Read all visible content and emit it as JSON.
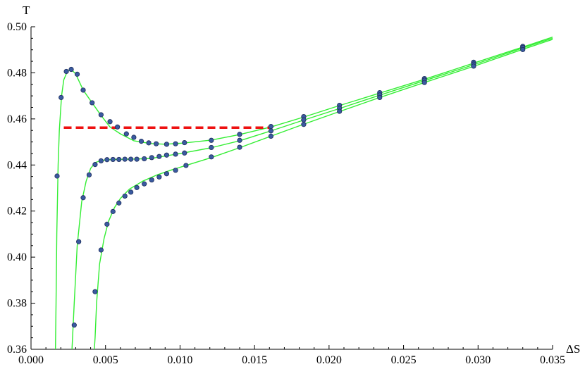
{
  "chart_data": {
    "type": "line",
    "xlabel": "ΔS",
    "ylabel": "T",
    "xlim": [
      0.0,
      0.035
    ],
    "ylim": [
      0.36,
      0.5
    ],
    "x_ticks": [
      "0.000",
      "0.005",
      "0.010",
      "0.015",
      "0.020",
      "0.025",
      "0.030",
      "0.035"
    ],
    "y_ticks": [
      "0.36",
      "0.38",
      "0.40",
      "0.42",
      "0.44",
      "0.46",
      "0.48",
      "0.50"
    ],
    "grid": false,
    "colors": {
      "curve": "#33ee33",
      "point": "#3a5aa0",
      "point_edge": "#1e2e5a",
      "plateau": "#ee1111"
    },
    "series": [
      {
        "curve": [
          [
            0.00163,
            0.355
          ],
          [
            0.00168,
            0.38
          ],
          [
            0.00173,
            0.41
          ],
          [
            0.00182,
            0.44
          ],
          [
            0.0019,
            0.455
          ],
          [
            0.00205,
            0.47
          ],
          [
            0.0022,
            0.477
          ],
          [
            0.00245,
            0.4808
          ],
          [
            0.0027,
            0.4815
          ],
          [
            0.003,
            0.4795
          ],
          [
            0.0035,
            0.4725
          ],
          [
            0.0041,
            0.467
          ],
          [
            0.0047,
            0.4615
          ],
          [
            0.0053,
            0.4565
          ],
          [
            0.006,
            0.4535
          ],
          [
            0.0069,
            0.4505
          ],
          [
            0.008,
            0.4493
          ],
          [
            0.009,
            0.449
          ],
          [
            0.0102,
            0.4495
          ],
          [
            0.0121,
            0.4508
          ],
          [
            0.014,
            0.4532
          ],
          [
            0.0161,
            0.4565
          ],
          [
            0.0183,
            0.4608
          ],
          [
            0.0207,
            0.4658
          ],
          [
            0.0234,
            0.4712
          ],
          [
            0.0264,
            0.4772
          ],
          [
            0.0297,
            0.4842
          ],
          [
            0.033,
            0.4912
          ],
          [
            0.035,
            0.4955
          ]
        ],
        "points": [
          [
            0.00175,
            0.4352
          ],
          [
            0.00202,
            0.4693
          ],
          [
            0.00237,
            0.4806
          ],
          [
            0.0027,
            0.4815
          ],
          [
            0.0031,
            0.4794
          ],
          [
            0.0035,
            0.4725
          ],
          [
            0.0041,
            0.467
          ],
          [
            0.0047,
            0.4618
          ],
          [
            0.0053,
            0.4588
          ],
          [
            0.0058,
            0.4565
          ],
          [
            0.0064,
            0.4535
          ],
          [
            0.0069,
            0.452
          ],
          [
            0.0074,
            0.4503
          ],
          [
            0.0079,
            0.4496
          ],
          [
            0.0084,
            0.4492
          ],
          [
            0.0091,
            0.449
          ],
          [
            0.0097,
            0.4492
          ],
          [
            0.0103,
            0.4497
          ],
          [
            0.0121,
            0.4507
          ],
          [
            0.014,
            0.4533
          ],
          [
            0.0161,
            0.4567
          ],
          [
            0.0183,
            0.461
          ],
          [
            0.0207,
            0.4659
          ],
          [
            0.0234,
            0.4714
          ],
          [
            0.0264,
            0.4775
          ],
          [
            0.0297,
            0.4846
          ],
          [
            0.033,
            0.4915
          ]
        ]
      },
      {
        "curve": [
          [
            0.0027,
            0.355
          ],
          [
            0.00275,
            0.36
          ],
          [
            0.0029,
            0.38
          ],
          [
            0.0031,
            0.405
          ],
          [
            0.0034,
            0.424
          ],
          [
            0.0037,
            0.433
          ],
          [
            0.004,
            0.4385
          ],
          [
            0.0043,
            0.441
          ],
          [
            0.0047,
            0.442
          ],
          [
            0.0055,
            0.4424
          ],
          [
            0.0065,
            0.4425
          ],
          [
            0.008,
            0.4428
          ],
          [
            0.0102,
            0.4452
          ],
          [
            0.0121,
            0.4475
          ],
          [
            0.014,
            0.4505
          ],
          [
            0.0161,
            0.4548
          ],
          [
            0.0183,
            0.4595
          ],
          [
            0.0207,
            0.4645
          ],
          [
            0.0234,
            0.4703
          ],
          [
            0.0264,
            0.4766
          ],
          [
            0.0297,
            0.4835
          ],
          [
            0.033,
            0.4908
          ],
          [
            0.035,
            0.495
          ]
        ],
        "points": [
          [
            0.0029,
            0.3705
          ],
          [
            0.0032,
            0.4067
          ],
          [
            0.0035,
            0.4258
          ],
          [
            0.0039,
            0.4357
          ],
          [
            0.0043,
            0.4402
          ],
          [
            0.0047,
            0.4418
          ],
          [
            0.0051,
            0.4423
          ],
          [
            0.0055,
            0.4424
          ],
          [
            0.0059,
            0.4424
          ],
          [
            0.0063,
            0.4425
          ],
          [
            0.0067,
            0.4425
          ],
          [
            0.0071,
            0.4425
          ],
          [
            0.0076,
            0.4427
          ],
          [
            0.0081,
            0.4432
          ],
          [
            0.0086,
            0.4437
          ],
          [
            0.0091,
            0.4443
          ],
          [
            0.0097,
            0.4447
          ],
          [
            0.0103,
            0.4452
          ],
          [
            0.0121,
            0.4476
          ],
          [
            0.014,
            0.4507
          ],
          [
            0.0161,
            0.4548
          ],
          [
            0.0183,
            0.4596
          ],
          [
            0.0207,
            0.4646
          ],
          [
            0.0234,
            0.4704
          ],
          [
            0.0264,
            0.4768
          ],
          [
            0.0297,
            0.4838
          ],
          [
            0.033,
            0.491
          ]
        ]
      },
      {
        "curve": [
          [
            0.0042,
            0.355
          ],
          [
            0.0043,
            0.365
          ],
          [
            0.0044,
            0.38
          ],
          [
            0.0046,
            0.397
          ],
          [
            0.0049,
            0.408
          ],
          [
            0.0052,
            0.4155
          ],
          [
            0.0056,
            0.4215
          ],
          [
            0.006,
            0.4255
          ],
          [
            0.0066,
            0.4295
          ],
          [
            0.0075,
            0.433
          ],
          [
            0.0085,
            0.4358
          ],
          [
            0.0095,
            0.438
          ],
          [
            0.0104,
            0.4398
          ],
          [
            0.0121,
            0.4432
          ],
          [
            0.014,
            0.4475
          ],
          [
            0.0161,
            0.4525
          ],
          [
            0.0183,
            0.4577
          ],
          [
            0.0207,
            0.4632
          ],
          [
            0.0234,
            0.4693
          ],
          [
            0.0264,
            0.4758
          ],
          [
            0.0297,
            0.4828
          ],
          [
            0.033,
            0.4902
          ],
          [
            0.035,
            0.4945
          ]
        ],
        "points": [
          [
            0.0043,
            0.385
          ],
          [
            0.0047,
            0.4031
          ],
          [
            0.0051,
            0.4143
          ],
          [
            0.0055,
            0.4198
          ],
          [
            0.0059,
            0.4235
          ],
          [
            0.0063,
            0.4265
          ],
          [
            0.0067,
            0.4282
          ],
          [
            0.0071,
            0.4302
          ],
          [
            0.0076,
            0.4318
          ],
          [
            0.0081,
            0.4335
          ],
          [
            0.0086,
            0.4348
          ],
          [
            0.0091,
            0.4362
          ],
          [
            0.0097,
            0.4377
          ],
          [
            0.0104,
            0.4398
          ],
          [
            0.0121,
            0.4435
          ],
          [
            0.014,
            0.4477
          ],
          [
            0.0161,
            0.4525
          ],
          [
            0.0183,
            0.4576
          ],
          [
            0.0207,
            0.4633
          ],
          [
            0.0234,
            0.4693
          ],
          [
            0.0264,
            0.4758
          ],
          [
            0.0297,
            0.4829
          ],
          [
            0.033,
            0.4901
          ]
        ]
      }
    ],
    "plateau": {
      "x": [
        0.0022,
        0.016
      ],
      "y": 0.4562
    }
  }
}
